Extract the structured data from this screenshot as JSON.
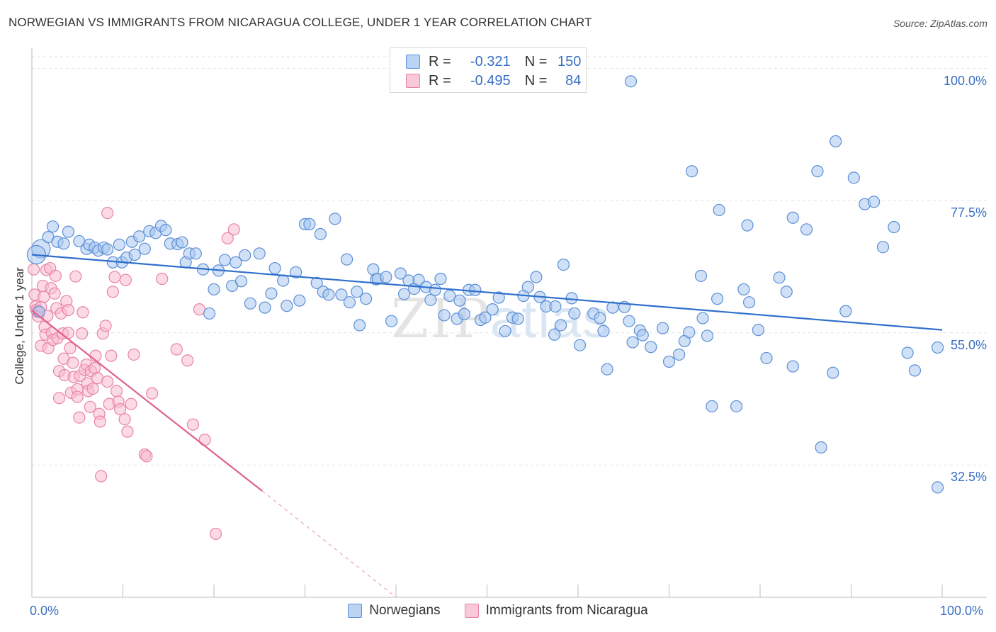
{
  "title": "NORWEGIAN VS IMMIGRANTS FROM NICARAGUA COLLEGE, UNDER 1 YEAR CORRELATION CHART",
  "source": "Source: ZipAtlas.com",
  "watermark": {
    "zip": "ZIP",
    "atlas": "atlas"
  },
  "legend": {
    "r_label": "R =",
    "n_label": "N =",
    "rows": [
      {
        "r": "-0.321",
        "n": "150"
      },
      {
        "r": "-0.495",
        "n": "84"
      }
    ]
  },
  "colors": {
    "norwegians_fill": "#aac8f0",
    "norwegians_stroke": "#5b8fd6",
    "norwegians_line": "#2f6fcc",
    "nicaragua_fill": "#f7bcd0",
    "nicaragua_stroke": "#e983a6",
    "nicaragua_line": "#e0608e",
    "tick_text": "#3a6fc4",
    "grid": "#e3e3e3"
  },
  "chart_data": {
    "type": "scatter",
    "title": "NORWEGIAN VS IMMIGRANTS FROM NICARAGUA COLLEGE, UNDER 1 YEAR CORRELATION CHART",
    "xlabel": "",
    "ylabel": "College, Under 1 year",
    "xlim": [
      0,
      100
    ],
    "ylim": [
      10,
      102
    ],
    "x_tick_labels": [
      "0.0%",
      "100.0%"
    ],
    "y_ticks": [
      32.5,
      55.0,
      77.5,
      100.0
    ],
    "y_tick_labels": [
      "32.5%",
      "55.0%",
      "77.5%",
      "100.0%"
    ],
    "grid": true,
    "legend_position": "top-center",
    "series": [
      {
        "name": "Norwegians",
        "r": -0.321,
        "n": 150,
        "trend": {
          "x": [
            0,
            100
          ],
          "y": [
            68.3,
            55.5
          ]
        },
        "points": [
          [
            1,
            69.3
          ],
          [
            0.5,
            68.3
          ],
          [
            0.8,
            58.6
          ],
          [
            1.8,
            71.3
          ],
          [
            2.3,
            73.1
          ],
          [
            2.8,
            70.5
          ],
          [
            3.5,
            70.2
          ],
          [
            4,
            72.2
          ],
          [
            5.2,
            70.6
          ],
          [
            6,
            69.3
          ],
          [
            6.3,
            70
          ],
          [
            6.9,
            69.5
          ],
          [
            7.3,
            69
          ],
          [
            7.9,
            69.5
          ],
          [
            8.3,
            69.2
          ],
          [
            8.9,
            67
          ],
          [
            9.6,
            70
          ],
          [
            9.9,
            67
          ],
          [
            10.4,
            67.8
          ],
          [
            11,
            70.5
          ],
          [
            11.3,
            68.3
          ],
          [
            11.8,
            71.4
          ],
          [
            12.4,
            69.3
          ],
          [
            12.9,
            72.3
          ],
          [
            13.6,
            72
          ],
          [
            14.2,
            73.2
          ],
          [
            14.7,
            72.5
          ],
          [
            15.2,
            70.2
          ],
          [
            16,
            70.1
          ],
          [
            16.5,
            70.4
          ],
          [
            16.9,
            67
          ],
          [
            17.3,
            68.5
          ],
          [
            18,
            68.5
          ],
          [
            18.8,
            65.8
          ],
          [
            19.5,
            58.3
          ],
          [
            20,
            62.4
          ],
          [
            20.5,
            65.6
          ],
          [
            21.2,
            67.4
          ],
          [
            22,
            63
          ],
          [
            22.4,
            67
          ],
          [
            23,
            63.8
          ],
          [
            23.4,
            68.2
          ],
          [
            24,
            60
          ],
          [
            25,
            68.5
          ],
          [
            25.6,
            59.3
          ],
          [
            26.3,
            61.7
          ],
          [
            26.7,
            66
          ],
          [
            27.6,
            63.9
          ],
          [
            28,
            59.6
          ],
          [
            29,
            65.3
          ],
          [
            29.4,
            60.5
          ],
          [
            30,
            73.5
          ],
          [
            30.5,
            73.5
          ],
          [
            31.3,
            63.5
          ],
          [
            31.7,
            71.8
          ],
          [
            32,
            62
          ],
          [
            32.6,
            61.5
          ],
          [
            33.3,
            74.4
          ],
          [
            34,
            61.5
          ],
          [
            34.6,
            67.5
          ],
          [
            34.9,
            60.2
          ],
          [
            35.7,
            62
          ],
          [
            36,
            56.3
          ],
          [
            36.7,
            60.8
          ],
          [
            37.5,
            65.8
          ],
          [
            37.8,
            64.1
          ],
          [
            38,
            64.2
          ],
          [
            38.9,
            64.5
          ],
          [
            39.5,
            57
          ],
          [
            40.5,
            65.1
          ],
          [
            40.9,
            61.6
          ],
          [
            41.4,
            63.9
          ],
          [
            42,
            62.5
          ],
          [
            42.5,
            64
          ],
          [
            43.3,
            62.8
          ],
          [
            43.8,
            60.6
          ],
          [
            44.3,
            62.3
          ],
          [
            44.9,
            64.2
          ],
          [
            45.3,
            58
          ],
          [
            45.9,
            61.3
          ],
          [
            46.7,
            57.4
          ],
          [
            47,
            60.5
          ],
          [
            47.5,
            58.2
          ],
          [
            48,
            62.3
          ],
          [
            48.7,
            62.3
          ],
          [
            49.3,
            57.2
          ],
          [
            49.8,
            57.6
          ],
          [
            50.6,
            59
          ],
          [
            51.3,
            61
          ],
          [
            52,
            55.3
          ],
          [
            52.8,
            57.6
          ],
          [
            53.4,
            57.4
          ],
          [
            54,
            61.3
          ],
          [
            54.5,
            62.8
          ],
          [
            55.4,
            64.5
          ],
          [
            55.8,
            61.1
          ],
          [
            56.5,
            59.5
          ],
          [
            57.4,
            54.7
          ],
          [
            57.5,
            59.5
          ],
          [
            58.1,
            56.3
          ],
          [
            58.4,
            66.6
          ],
          [
            59.3,
            60.9
          ],
          [
            59.6,
            58.3
          ],
          [
            60.2,
            52.9
          ],
          [
            61.7,
            58.3
          ],
          [
            62.4,
            57.5
          ],
          [
            62.8,
            55.3
          ],
          [
            63.2,
            48.8
          ],
          [
            63.8,
            59.3
          ],
          [
            65.1,
            59.4
          ],
          [
            65.6,
            57
          ],
          [
            66,
            53.4
          ],
          [
            66.8,
            55.4
          ],
          [
            67.1,
            54.6
          ],
          [
            68,
            52.6
          ],
          [
            69.3,
            55.8
          ],
          [
            70,
            50.1
          ],
          [
            71.1,
            51.3
          ],
          [
            71.7,
            53.6
          ],
          [
            72.2,
            55.1
          ],
          [
            73.5,
            64.7
          ],
          [
            73.7,
            57.5
          ],
          [
            74.2,
            54.5
          ],
          [
            74.7,
            42.5
          ],
          [
            75.3,
            60.8
          ],
          [
            77.4,
            42.5
          ],
          [
            78.2,
            62.4
          ],
          [
            78.8,
            60.2
          ],
          [
            79.8,
            55.5
          ],
          [
            80.7,
            50.7
          ],
          [
            82.1,
            64.4
          ],
          [
            82.9,
            62
          ],
          [
            83.6,
            49.3
          ],
          [
            85.1,
            72.6
          ],
          [
            86.7,
            35.5
          ],
          [
            88,
            48.2
          ],
          [
            89.4,
            58.7
          ],
          [
            93.5,
            69.6
          ],
          [
            96.2,
            51.6
          ],
          [
            97,
            48.6
          ],
          [
            99.5,
            52.5
          ],
          [
            72.5,
            82.5
          ],
          [
            75.5,
            75.9
          ],
          [
            78.6,
            73.3
          ],
          [
            83.6,
            74.6
          ],
          [
            86.3,
            82.5
          ],
          [
            88.3,
            87.6
          ],
          [
            90.3,
            81.4
          ],
          [
            91.5,
            76.9
          ],
          [
            92.5,
            77.3
          ],
          [
            94.7,
            73
          ],
          [
            65.8,
            97.8
          ],
          [
            99.5,
            28.7
          ]
        ]
      },
      {
        "name": "Immigrants from Nicaragua",
        "r": -0.495,
        "n": 84,
        "trend": {
          "x": [
            0,
            25.3
          ],
          "y": [
            58.8,
            28.1
          ]
        },
        "trend_dashed": {
          "x": [
            25.3,
            40
          ],
          "y": [
            28.1,
            10
          ]
        },
        "points": [
          [
            0.2,
            65.8
          ],
          [
            0.3,
            61.5
          ],
          [
            0.4,
            59.5
          ],
          [
            0.5,
            58.9
          ],
          [
            0.6,
            58.6
          ],
          [
            0.7,
            57.8
          ],
          [
            1,
            59.4
          ],
          [
            1,
            52.8
          ],
          [
            1.2,
            63
          ],
          [
            1.3,
            61.1
          ],
          [
            1.4,
            56
          ],
          [
            1.5,
            54.7
          ],
          [
            1.6,
            65.7
          ],
          [
            1.7,
            57.9
          ],
          [
            1.8,
            52.4
          ],
          [
            2,
            66
          ],
          [
            2.1,
            62.6
          ],
          [
            2.2,
            55
          ],
          [
            2.3,
            53.8
          ],
          [
            2.5,
            61.7
          ],
          [
            2.6,
            64.7
          ],
          [
            2.7,
            59.2
          ],
          [
            2.8,
            54.1
          ],
          [
            3,
            48.5
          ],
          [
            3,
            43.9
          ],
          [
            3.2,
            58.3
          ],
          [
            3.4,
            54.9
          ],
          [
            3.5,
            50.6
          ],
          [
            3.6,
            47.8
          ],
          [
            3.8,
            60.4
          ],
          [
            4,
            58.9
          ],
          [
            4,
            55
          ],
          [
            4.2,
            52.4
          ],
          [
            4.3,
            44.8
          ],
          [
            4.5,
            49.9
          ],
          [
            4.6,
            47.5
          ],
          [
            4.8,
            64.6
          ],
          [
            5,
            45.4
          ],
          [
            5,
            44.1
          ],
          [
            5.2,
            40.6
          ],
          [
            5.3,
            47.7
          ],
          [
            5.5,
            54.9
          ],
          [
            5.6,
            58.5
          ],
          [
            5.8,
            48.7
          ],
          [
            6.0,
            49.6
          ],
          [
            6.1,
            46.4
          ],
          [
            6.2,
            45.1
          ],
          [
            6.4,
            42.4
          ],
          [
            6.5,
            48.5
          ],
          [
            6.7,
            45.5
          ],
          [
            6.9,
            49
          ],
          [
            7.0,
            51.1
          ],
          [
            7.2,
            47.3
          ],
          [
            7.4,
            41.2
          ],
          [
            7.5,
            39.9
          ],
          [
            7.6,
            30.6
          ],
          [
            7.8,
            54.9
          ],
          [
            8.1,
            56.2
          ],
          [
            8.3,
            46.7
          ],
          [
            8.5,
            42.9
          ],
          [
            8.7,
            51.1
          ],
          [
            8.9,
            62
          ],
          [
            9.1,
            64.5
          ],
          [
            9.3,
            45.1
          ],
          [
            9.5,
            43.3
          ],
          [
            9.7,
            42
          ],
          [
            10.2,
            40.3
          ],
          [
            10.5,
            38.2
          ],
          [
            10.9,
            42.9
          ],
          [
            11.2,
            51.3
          ],
          [
            12.4,
            34.3
          ],
          [
            12.6,
            34
          ],
          [
            13.2,
            44.7
          ],
          [
            14.3,
            64.2
          ],
          [
            15.9,
            52.2
          ],
          [
            17.1,
            50.3
          ],
          [
            17.7,
            39.4
          ],
          [
            18.4,
            59
          ],
          [
            19,
            36.8
          ],
          [
            20.2,
            20.8
          ],
          [
            21.5,
            71.1
          ],
          [
            22.2,
            72.6
          ],
          [
            10.3,
            64
          ],
          [
            8.3,
            75.4
          ]
        ]
      }
    ]
  }
}
